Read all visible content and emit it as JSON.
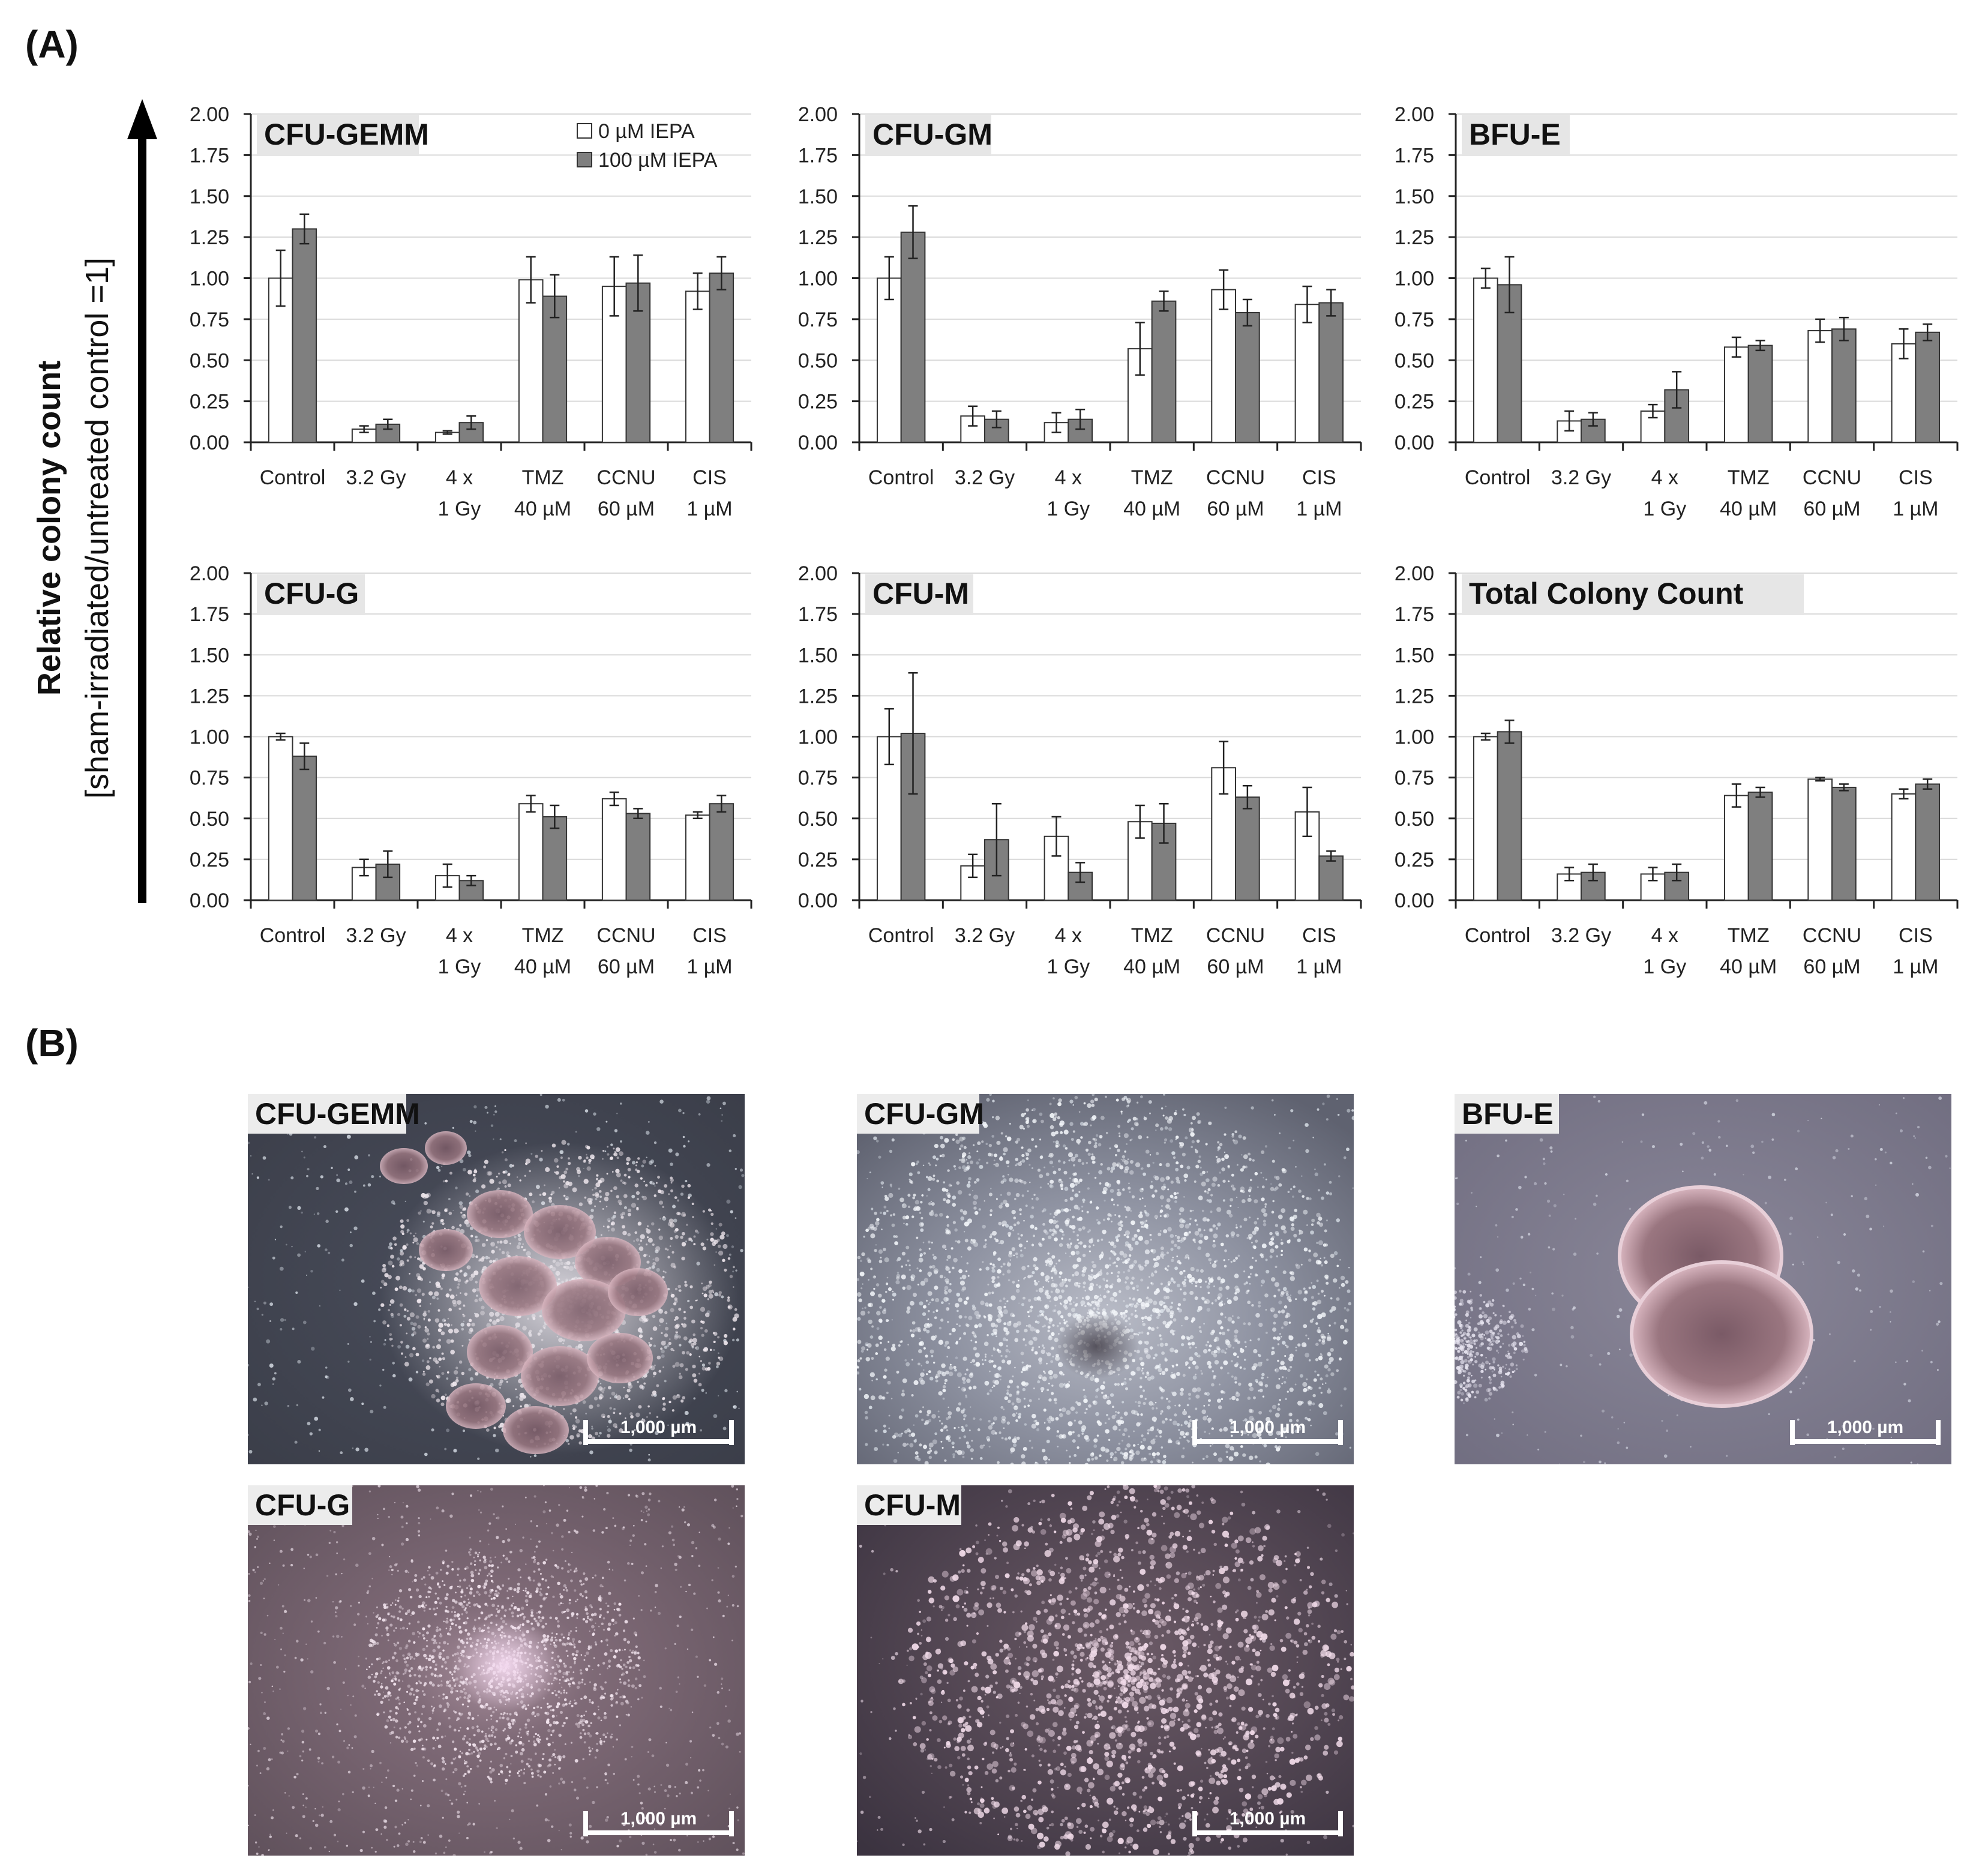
{
  "panel_a_label": "(A)",
  "panel_b_label": "(B)",
  "y_axis_label": {
    "main": "Relative colony count",
    "sub": "[sham-irradiated/untreated control =1]"
  },
  "legend": {
    "items": [
      {
        "label": "0 µM IEPA",
        "color": "#ffffff"
      },
      {
        "label": "100 µM IEPA",
        "color": "#7f7f7f"
      }
    ]
  },
  "colors": {
    "series_0": "#ffffff",
    "series_100": "#7f7f7f",
    "bar_stroke": "#333333",
    "grid": "#d9d9d9",
    "title_box": "#e6e6e6"
  },
  "chart_data": [
    {
      "type": "bar",
      "title": "CFU-GEMM",
      "categories": [
        [
          "Control"
        ],
        [
          "3.2 Gy"
        ],
        [
          "4 x",
          "1 Gy"
        ],
        [
          "TMZ",
          "40 µM"
        ],
        [
          "CCNU",
          "60 µM"
        ],
        [
          "CIS",
          "1 µM"
        ]
      ],
      "ylim": [
        0,
        2
      ],
      "yticks": [
        "0.00",
        "0.25",
        "0.50",
        "0.75",
        "1.00",
        "1.25",
        "1.50",
        "1.75",
        "2.00"
      ],
      "grid": true,
      "series": [
        {
          "name": "0 µM IEPA",
          "values": [
            1.0,
            0.08,
            0.06,
            0.99,
            0.95,
            0.92
          ],
          "errors": [
            0.17,
            0.02,
            0.01,
            0.14,
            0.18,
            0.11
          ]
        },
        {
          "name": "100 µM IEPA",
          "values": [
            1.3,
            0.11,
            0.12,
            0.89,
            0.97,
            1.03
          ],
          "errors": [
            0.09,
            0.03,
            0.04,
            0.13,
            0.17,
            0.1
          ]
        }
      ]
    },
    {
      "type": "bar",
      "title": "CFU-GM",
      "categories": [
        [
          "Control"
        ],
        [
          "3.2 Gy"
        ],
        [
          "4 x",
          "1 Gy"
        ],
        [
          "TMZ",
          "40 µM"
        ],
        [
          "CCNU",
          "60 µM"
        ],
        [
          "CIS",
          "1 µM"
        ]
      ],
      "ylim": [
        0,
        2
      ],
      "yticks": [
        "0.00",
        "0.25",
        "0.50",
        "0.75",
        "1.00",
        "1.25",
        "1.50",
        "1.75",
        "2.00"
      ],
      "grid": true,
      "series": [
        {
          "name": "0 µM IEPA",
          "values": [
            1.0,
            0.16,
            0.12,
            0.57,
            0.93,
            0.84
          ],
          "errors": [
            0.13,
            0.06,
            0.06,
            0.16,
            0.12,
            0.11
          ]
        },
        {
          "name": "100 µM IEPA",
          "values": [
            1.28,
            0.14,
            0.14,
            0.86,
            0.79,
            0.85
          ],
          "errors": [
            0.16,
            0.05,
            0.06,
            0.06,
            0.08,
            0.08
          ]
        }
      ]
    },
    {
      "type": "bar",
      "title": "BFU-E",
      "categories": [
        [
          "Control"
        ],
        [
          "3.2 Gy"
        ],
        [
          "4 x",
          "1 Gy"
        ],
        [
          "TMZ",
          "40 µM"
        ],
        [
          "CCNU",
          "60 µM"
        ],
        [
          "CIS",
          "1 µM"
        ]
      ],
      "ylim": [
        0,
        2
      ],
      "yticks": [
        "0.00",
        "0.25",
        "0.50",
        "0.75",
        "1.00",
        "1.25",
        "1.50",
        "1.75",
        "2.00"
      ],
      "grid": true,
      "series": [
        {
          "name": "0 µM IEPA",
          "values": [
            1.0,
            0.13,
            0.19,
            0.58,
            0.68,
            0.6
          ],
          "errors": [
            0.06,
            0.06,
            0.04,
            0.06,
            0.07,
            0.09
          ]
        },
        {
          "name": "100 µM IEPA",
          "values": [
            0.96,
            0.14,
            0.32,
            0.59,
            0.69,
            0.67
          ],
          "errors": [
            0.17,
            0.04,
            0.11,
            0.03,
            0.07,
            0.05
          ]
        }
      ]
    },
    {
      "type": "bar",
      "title": "CFU-G",
      "categories": [
        [
          "Control"
        ],
        [
          "3.2 Gy"
        ],
        [
          "4 x",
          "1 Gy"
        ],
        [
          "TMZ",
          "40 µM"
        ],
        [
          "CCNU",
          "60 µM"
        ],
        [
          "CIS",
          "1 µM"
        ]
      ],
      "ylim": [
        0,
        2
      ],
      "yticks": [
        "0.00",
        "0.25",
        "0.50",
        "0.75",
        "1.00",
        "1.25",
        "1.50",
        "1.75",
        "2.00"
      ],
      "grid": true,
      "series": [
        {
          "name": "0 µM IEPA",
          "values": [
            1.0,
            0.2,
            0.15,
            0.59,
            0.62,
            0.52
          ],
          "errors": [
            0.02,
            0.05,
            0.07,
            0.05,
            0.04,
            0.02
          ]
        },
        {
          "name": "100 µM IEPA",
          "values": [
            0.88,
            0.22,
            0.12,
            0.51,
            0.53,
            0.59
          ],
          "errors": [
            0.08,
            0.08,
            0.03,
            0.07,
            0.03,
            0.05
          ]
        }
      ]
    },
    {
      "type": "bar",
      "title": "CFU-M",
      "categories": [
        [
          "Control"
        ],
        [
          "3.2 Gy"
        ],
        [
          "4 x",
          "1 Gy"
        ],
        [
          "TMZ",
          "40 µM"
        ],
        [
          "CCNU",
          "60 µM"
        ],
        [
          "CIS",
          "1 µM"
        ]
      ],
      "ylim": [
        0,
        2
      ],
      "yticks": [
        "0.00",
        "0.25",
        "0.50",
        "0.75",
        "1.00",
        "1.25",
        "1.50",
        "1.75",
        "2.00"
      ],
      "grid": true,
      "series": [
        {
          "name": "0 µM IEPA",
          "values": [
            1.0,
            0.21,
            0.39,
            0.48,
            0.81,
            0.54
          ],
          "errors": [
            0.17,
            0.07,
            0.12,
            0.1,
            0.16,
            0.15
          ]
        },
        {
          "name": "100 µM IEPA",
          "values": [
            1.02,
            0.37,
            0.17,
            0.47,
            0.63,
            0.27
          ],
          "errors": [
            0.37,
            0.22,
            0.06,
            0.12,
            0.07,
            0.03
          ]
        }
      ]
    },
    {
      "type": "bar",
      "title": "Total Colony Count",
      "categories": [
        [
          "Control"
        ],
        [
          "3.2 Gy"
        ],
        [
          "4 x",
          "1 Gy"
        ],
        [
          "TMZ",
          "40 µM"
        ],
        [
          "CCNU",
          "60 µM"
        ],
        [
          "CIS",
          "1 µM"
        ]
      ],
      "ylim": [
        0,
        2
      ],
      "yticks": [
        "0.00",
        "0.25",
        "0.50",
        "0.75",
        "1.00",
        "1.25",
        "1.50",
        "1.75",
        "2.00"
      ],
      "grid": true,
      "series": [
        {
          "name": "0 µM IEPA",
          "values": [
            1.0,
            0.16,
            0.16,
            0.64,
            0.74,
            0.65
          ],
          "errors": [
            0.02,
            0.04,
            0.04,
            0.07,
            0.01,
            0.03
          ]
        },
        {
          "name": "100 µM IEPA",
          "values": [
            1.03,
            0.17,
            0.17,
            0.66,
            0.69,
            0.71
          ],
          "errors": [
            0.07,
            0.05,
            0.05,
            0.03,
            0.02,
            0.03
          ]
        }
      ]
    }
  ],
  "photos": [
    {
      "label": "CFU-GEMM",
      "scale_bar": "1,000 µm",
      "style": "gemm"
    },
    {
      "label": "CFU-GM",
      "scale_bar": "1,000 µm",
      "style": "gm"
    },
    {
      "label": "BFU-E",
      "scale_bar": "1,000 µm",
      "style": "bfue"
    },
    {
      "label": "CFU-G",
      "scale_bar": "1,000 µm",
      "style": "g"
    },
    {
      "label": "CFU-M",
      "scale_bar": "1,000 µm",
      "style": "m"
    }
  ]
}
